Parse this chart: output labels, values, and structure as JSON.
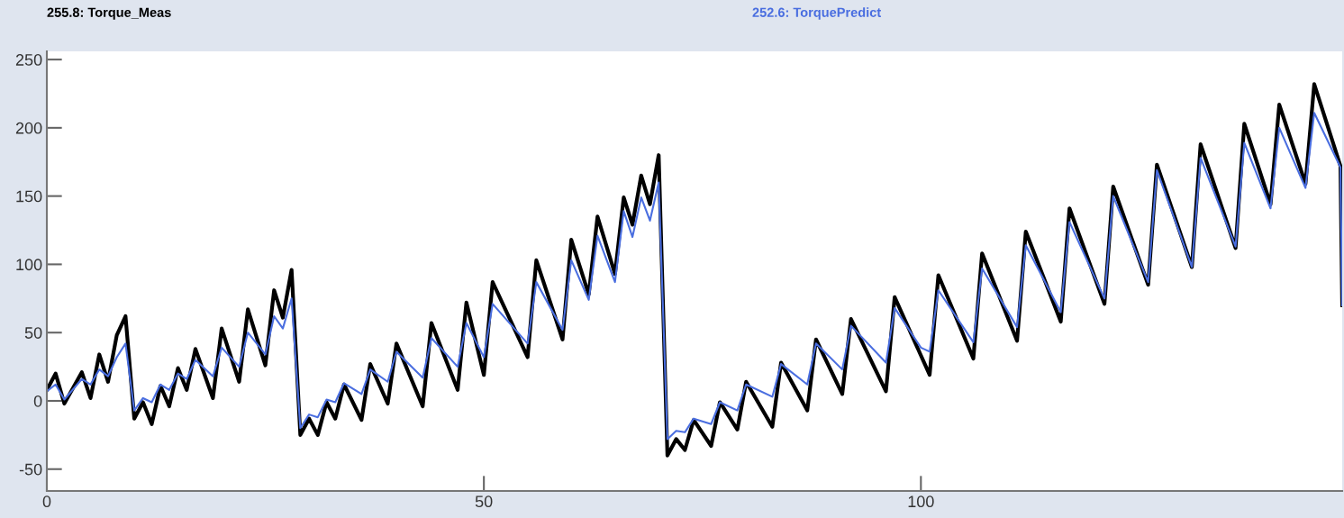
{
  "chart_data": {
    "type": "line",
    "xlim": [
      0,
      148.2
    ],
    "ylim": [
      -66,
      256
    ],
    "xticks": [
      0,
      50,
      100
    ],
    "yticks": [
      -50,
      0,
      50,
      100,
      150,
      200,
      250
    ],
    "grid": false,
    "legend": "top",
    "marker": "none",
    "line_style": "solid",
    "series": [
      {
        "name": "255.8: Torque_Meas",
        "color": "#000000",
        "x": [
          0,
          1,
          2,
          4,
          5,
          6,
          7,
          8,
          9,
          10,
          11,
          12,
          13,
          14,
          15,
          16,
          17,
          19,
          20,
          22,
          23,
          25,
          26,
          27,
          28,
          29,
          30,
          31,
          32,
          33,
          34,
          36,
          37,
          39,
          40,
          43,
          44,
          47,
          48,
          50,
          51,
          55,
          56,
          59,
          60,
          62,
          63,
          65,
          66,
          67,
          68,
          69,
          70,
          71,
          72,
          73,
          74,
          76,
          77,
          79,
          80,
          83,
          84,
          87,
          88,
          91,
          92,
          96,
          97,
          101,
          102,
          106,
          107,
          111,
          112,
          116,
          117,
          121,
          122,
          126,
          127,
          131,
          132,
          136,
          137,
          140,
          141,
          144,
          145,
          148,
          148.2
        ],
        "values": [
          8,
          20,
          -2,
          21,
          2,
          34,
          14,
          48,
          62,
          -13,
          -1,
          -17,
          11,
          -4,
          24,
          8,
          38,
          2,
          53,
          14,
          67,
          26,
          81,
          61,
          96,
          -25,
          -13,
          -25,
          -1,
          -13,
          12,
          -14,
          27,
          -2,
          42,
          -4,
          57,
          8,
          72,
          19,
          87,
          32,
          103,
          45,
          118,
          78,
          135,
          93,
          149,
          129,
          165,
          144,
          180,
          -40,
          -28,
          -36,
          -14,
          -33,
          -1,
          -21,
          14,
          -19,
          28,
          -7,
          45,
          5,
          60,
          7,
          76,
          19,
          92,
          31,
          108,
          44,
          124,
          58,
          141,
          71,
          157,
          85,
          173,
          98,
          188,
          112,
          203,
          144,
          217,
          159,
          232,
          172,
          70
        ]
      },
      {
        "name": "252.6: TorquePredict",
        "color": "#4a6ee0",
        "x": [
          0,
          1,
          2,
          4,
          5,
          6,
          7,
          8,
          9,
          10,
          11,
          12,
          13,
          14,
          15,
          16,
          17,
          19,
          20,
          22,
          23,
          25,
          26,
          27,
          28,
          29,
          30,
          31,
          32,
          33,
          34,
          36,
          37,
          39,
          40,
          43,
          44,
          47,
          48,
          50,
          51,
          55,
          56,
          59,
          60,
          62,
          63,
          65,
          66,
          67,
          68,
          69,
          70,
          71,
          72,
          73,
          74,
          75,
          76,
          77,
          79,
          80,
          83,
          84,
          87,
          88,
          91,
          92,
          96,
          97,
          100,
          101,
          102,
          106,
          107,
          111,
          112,
          116,
          117,
          121,
          122,
          126,
          127,
          131,
          132,
          136,
          137,
          140,
          141,
          144,
          145,
          148,
          148.2
        ],
        "values": [
          7,
          12,
          1,
          16,
          12,
          23,
          18,
          32,
          42,
          -7,
          2,
          -1,
          12,
          8,
          20,
          16,
          30,
          18,
          39,
          25,
          50,
          34,
          62,
          53,
          75,
          -20,
          -10,
          -12,
          1,
          -1,
          13,
          5,
          23,
          14,
          36,
          17,
          46,
          25,
          57,
          32,
          71,
          42,
          87,
          52,
          103,
          74,
          121,
          87,
          139,
          120,
          149,
          132,
          160,
          -28,
          -22,
          -23,
          -13,
          -15,
          -17,
          -1,
          -7,
          12,
          3,
          27,
          12,
          42,
          23,
          55,
          28,
          68,
          39,
          36,
          81,
          43,
          97,
          54,
          114,
          65,
          131,
          75,
          150,
          87,
          169,
          98,
          178,
          113,
          189,
          141,
          200,
          156,
          211,
          171,
          70
        ]
      }
    ]
  }
}
